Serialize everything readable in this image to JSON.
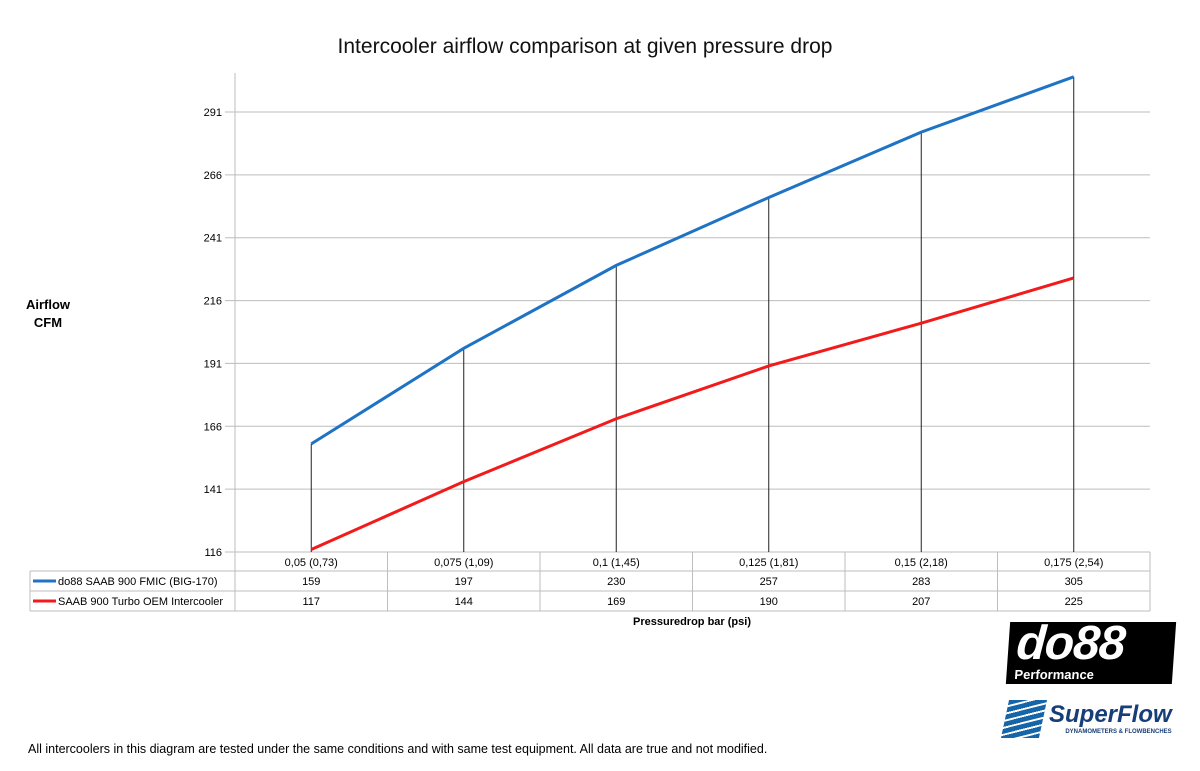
{
  "chart_data": {
    "type": "line",
    "title": "Intercooler airflow comparison at given pressure drop",
    "ylabel": "Airflow CFM",
    "ylabel_lines": [
      "Airflow",
      "CFM"
    ],
    "xlabel": "Pressuredrop bar (psi)",
    "categories": [
      "0,05 (0,73)",
      "0,075 (1,09)",
      "0,1 (1,45)",
      "0,125 (1,81)",
      "0,15 (2,18)",
      "0,175 (2,54)"
    ],
    "yticks": [
      116,
      141,
      166,
      191,
      216,
      241,
      266,
      291
    ],
    "ylim": [
      116,
      306
    ],
    "grid": true,
    "legend": "data-table-below",
    "drop_lines": true,
    "series": [
      {
        "name": "do88 SAAB 900 FMIC (BIG-170)",
        "color": "#1f73c4",
        "values": [
          159,
          197,
          230,
          257,
          283,
          305
        ]
      },
      {
        "name": "SAAB 900 Turbo OEM Intercooler",
        "color": "#f21b1b",
        "values": [
          117,
          144,
          169,
          190,
          207,
          225
        ]
      }
    ]
  },
  "footer": "All intercoolers in this diagram are tested under the same conditions and with same test equipment. All data are true and not modified.",
  "logos": {
    "do88": "do88",
    "do88_sub": "Performance",
    "superflow": "SuperFlow",
    "superflow_sub": "DYNAMOMETERS & FLOWBENCHES"
  }
}
